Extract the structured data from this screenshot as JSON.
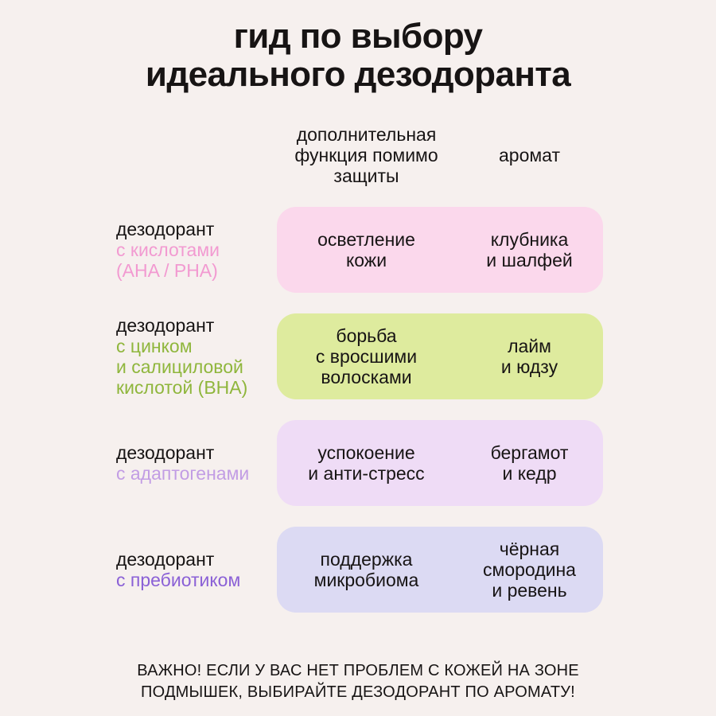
{
  "colors": {
    "background": "#f6f0ee",
    "text": "#171414"
  },
  "title": "гид по выбору\nидеального дезодоранта",
  "column_headers": {
    "function": "дополнительная\nфункция помимо\nзащиты",
    "aroma": "аромат"
  },
  "rows": [
    {
      "label": "дезодорант",
      "variant": "с кислотами\n(AHA / PHA)",
      "accent_color": "#f29ad1",
      "box_color": "#fbd8ec",
      "function": "осветление\nкожи",
      "aroma": "клубника\nи шалфей"
    },
    {
      "label": "дезодорант",
      "variant": "с цинком\nи салициловой\nкислотой (BHA)",
      "accent_color": "#8fb63c",
      "box_color": "#deeb9e",
      "function": "борьба\nс вросшими\nволосками",
      "aroma": "лайм\nи юдзу"
    },
    {
      "label": "дезодорант",
      "variant": "с адаптогенами",
      "accent_color": "#c29de4",
      "box_color": "#efdcf6",
      "function": "успокоение\nи анти-стресс",
      "aroma": "бергамот\nи кедр"
    },
    {
      "label": "дезодорант",
      "variant": "с пребиотиком",
      "accent_color": "#8a60d6",
      "box_color": "#dcdaf3",
      "function": "поддержка\nмикробиома",
      "aroma": "чёрная\nсмородина\nи ревень"
    }
  ],
  "footer": "ВАЖНО! ЕСЛИ У ВАС НЕТ ПРОБЛЕМ С КОЖЕЙ НА ЗОНЕ\nПОДМЫШЕК, ВЫБИРАЙТЕ ДЕЗОДОРАНТ ПО АРОМАТУ!"
}
